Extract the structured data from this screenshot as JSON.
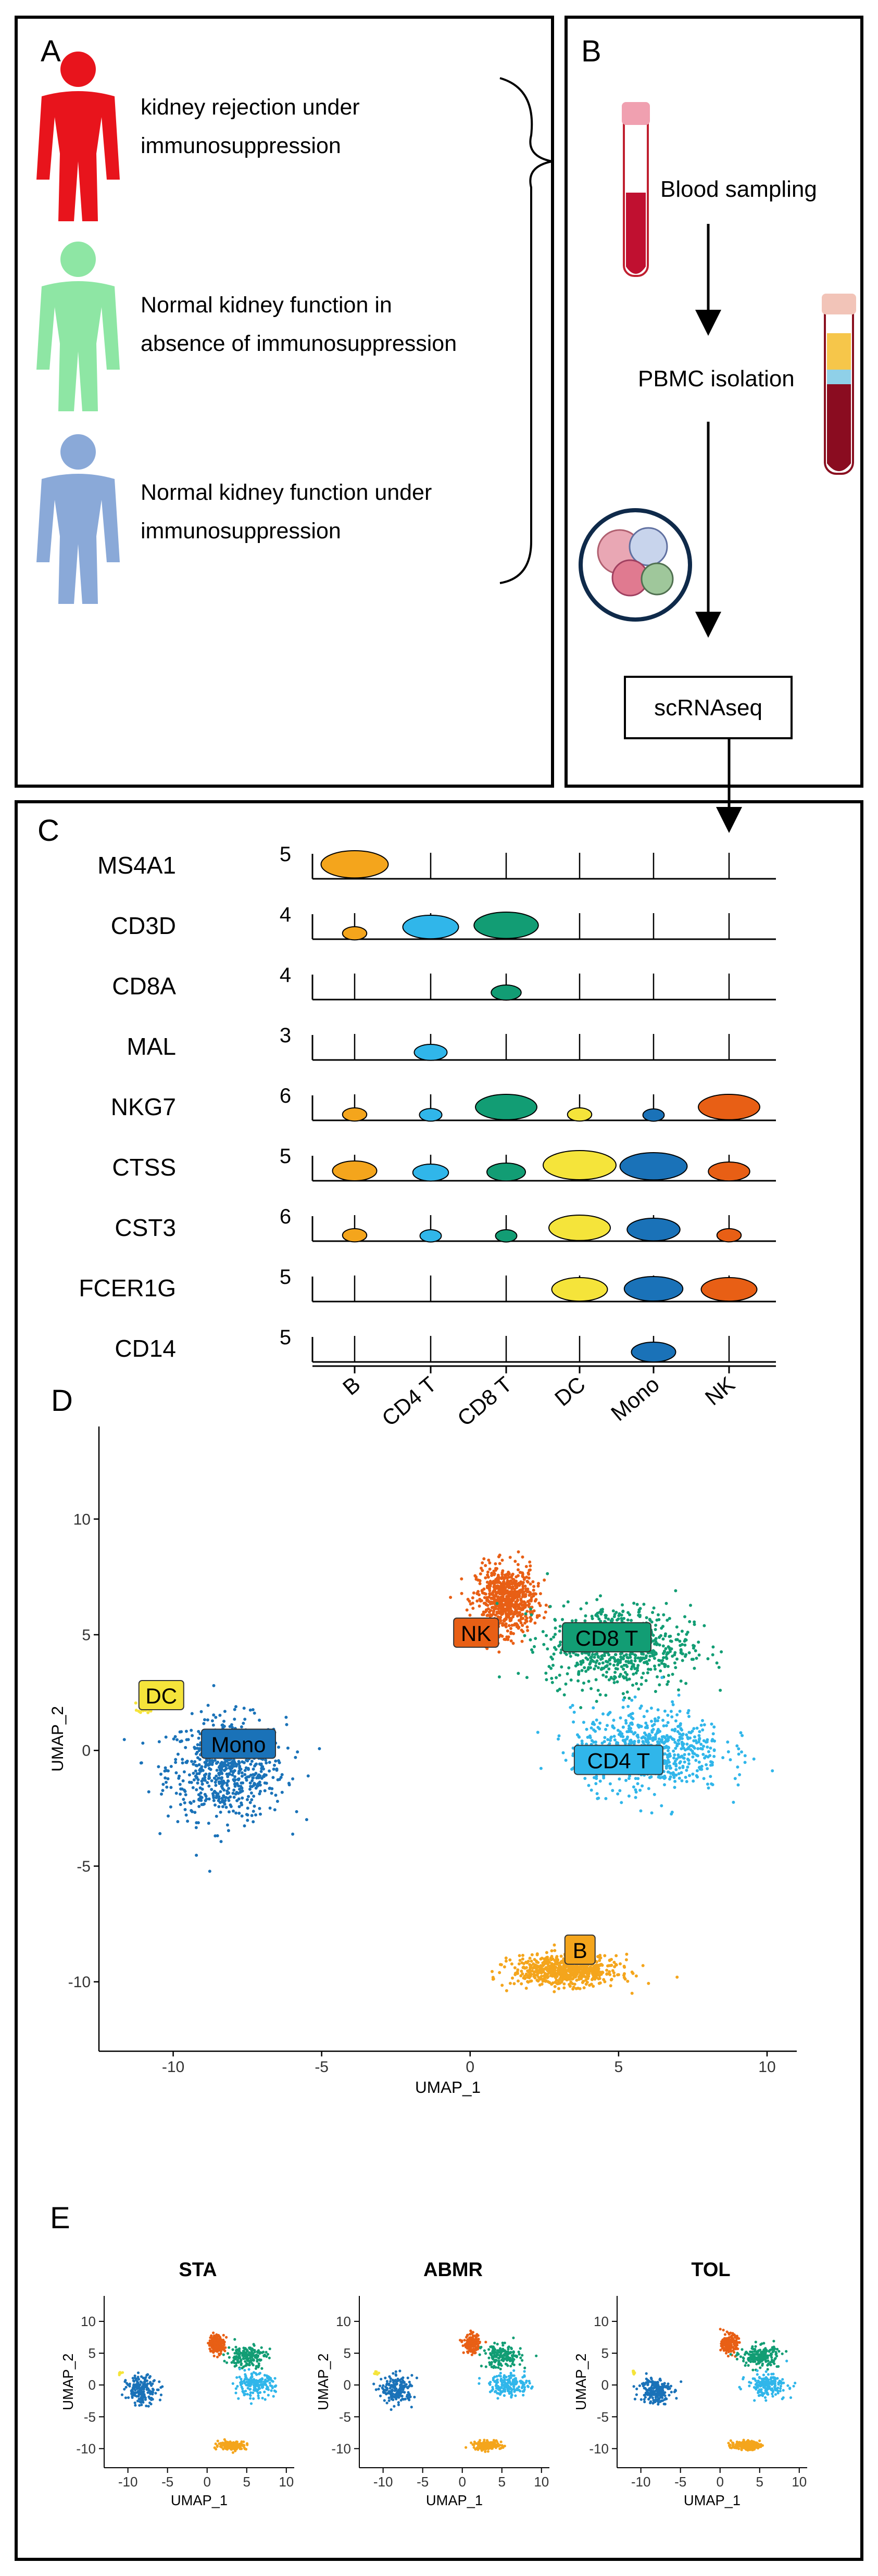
{
  "panel_a": {
    "label": "A",
    "groups": [
      {
        "text": "kidney rejection under immunosuppression",
        "lines": [
          "kidney rejection under",
          "immunosuppression"
        ],
        "color": "#e8141c"
      },
      {
        "text": "Normal kidney function in absence of immunosuppression",
        "lines": [
          "Normal kidney function in",
          "absence of immunosuppression"
        ],
        "color": "#8ee6a4"
      },
      {
        "text": "Normal kidney function under immunosuppression",
        "lines": [
          "Normal kidney function under",
          "immunosuppression"
        ],
        "color": "#8aa9d8"
      }
    ]
  },
  "panel_b": {
    "label": "B",
    "steps": [
      "Blood sampling",
      "PBMC isolation",
      "scRNAseq"
    ]
  },
  "panel_c": {
    "label": "C",
    "chart_data": {
      "type": "violin",
      "categories": [
        "B",
        "CD4 T",
        "CD8 T",
        "DC",
        "Mono",
        "NK"
      ],
      "category_colors": [
        "#f4a51c",
        "#30b6ea",
        "#129d74",
        "#f5e43a",
        "#1a72b8",
        "#e85f15"
      ],
      "genes": [
        {
          "name": "MS4A1",
          "ymax": "5",
          "values": [
            0.9,
            0,
            0,
            0,
            0,
            0
          ]
        },
        {
          "name": "CD3D",
          "ymax": "4",
          "values": [
            0.15,
            0.7,
            0.85,
            0,
            0,
            0
          ]
        },
        {
          "name": "CD8A",
          "ymax": "4",
          "values": [
            0,
            0,
            0.25,
            0,
            0,
            0
          ]
        },
        {
          "name": "MAL",
          "ymax": "3",
          "values": [
            0,
            0.3,
            0,
            0,
            0,
            0
          ]
        },
        {
          "name": "NKG7",
          "ymax": "6",
          "values": [
            0.15,
            0.12,
            0.8,
            0.15,
            0.1,
            0.8
          ]
        },
        {
          "name": "CTSS",
          "ymax": "5",
          "values": [
            0.5,
            0.35,
            0.4,
            1.0,
            0.9,
            0.45
          ]
        },
        {
          "name": "CST3",
          "ymax": "6",
          "values": [
            0.15,
            0.1,
            0.1,
            0.8,
            0.65,
            0.15
          ]
        },
        {
          "name": "FCER1G",
          "ymax": "5",
          "values": [
            0,
            0,
            0,
            0.7,
            0.75,
            0.7
          ]
        },
        {
          "name": "CD14",
          "ymax": "5",
          "values": [
            0,
            0,
            0,
            0,
            0.5,
            0
          ]
        }
      ]
    }
  },
  "panel_d": {
    "label": "D",
    "chart_data": {
      "type": "scatter",
      "xlabel": "UMAP_1",
      "ylabel": "UMAP_2",
      "xlim": [
        -12.5,
        11
      ],
      "ylim": [
        -13,
        14
      ],
      "xticks": [
        -10,
        -5,
        0,
        5,
        10
      ],
      "yticks": [
        10,
        5,
        0,
        -5,
        -10
      ],
      "clusters": [
        {
          "name": "Mono",
          "color": "#1a72b8",
          "center": [
            -8.2,
            -0.8
          ],
          "spread": [
            1.8,
            2.0
          ],
          "label_pos": [
            -7.8,
            0.2
          ]
        },
        {
          "name": "DC",
          "color": "#f5e43a",
          "center": [
            -10.9,
            1.9
          ],
          "spread": [
            0.25,
            0.25
          ],
          "label_pos": [
            -10.4,
            2.3
          ]
        },
        {
          "name": "NK",
          "color": "#e85f15",
          "center": [
            1.2,
            6.5
          ],
          "spread": [
            0.9,
            1.3
          ],
          "label_pos": [
            0.2,
            5.0
          ]
        },
        {
          "name": "CD8 T",
          "color": "#129d74",
          "center": [
            5.0,
            4.5
          ],
          "spread": [
            2.2,
            1.6
          ],
          "label_pos": [
            4.6,
            4.8
          ]
        },
        {
          "name": "CD4 T",
          "color": "#30b6ea",
          "center": [
            6.0,
            0.0
          ],
          "spread": [
            2.3,
            1.6
          ],
          "label_pos": [
            5.0,
            -0.5
          ]
        },
        {
          "name": "B",
          "color": "#f4a51c",
          "center": [
            3.2,
            -9.5
          ],
          "spread": [
            1.6,
            0.6
          ],
          "label_pos": [
            3.7,
            -8.7
          ]
        }
      ]
    }
  },
  "panel_e": {
    "label": "E",
    "chart_data": {
      "type": "scatter",
      "xlabel": "UMAP_1",
      "ylabel": "UMAP_2",
      "xticks": [
        -10,
        -5,
        0,
        5,
        10
      ],
      "yticks": [
        10,
        5,
        0,
        -5,
        -10
      ],
      "subplots": [
        {
          "title": "STA"
        },
        {
          "title": "ABMR"
        },
        {
          "title": "TOL"
        }
      ]
    }
  }
}
